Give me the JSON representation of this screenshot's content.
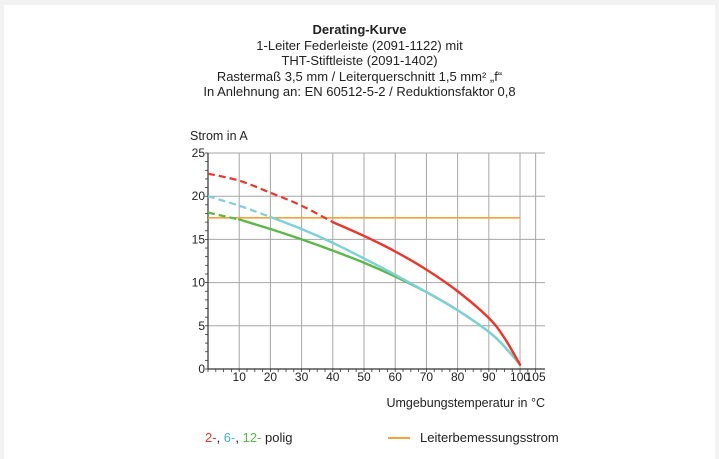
{
  "title_lines": [
    "Derating-Kurve",
    "1-Leiter Federleiste (2091-1122) mit",
    "THT-Stiftleiste (2091-1402)",
    "Rastermaß 3,5 mm / Leiterquerschnitt 1,5 mm² „f“",
    "In Anlehnung an: EN 60512-5-2 / Reduktionsfaktor 0,8"
  ],
  "chart_data": {
    "type": "line",
    "title": "Derating-Kurve",
    "xlabel": "Umgebungstemperatur in °C",
    "ylabel": "Strom in A",
    "xlim": [
      0,
      108
    ],
    "ylim": [
      0,
      25
    ],
    "x_ticks": [
      "10",
      "20",
      "30",
      "40",
      "50",
      "60",
      "70",
      "80",
      "90",
      "100",
      "105"
    ],
    "y_ticks": [
      "0",
      "5",
      "10",
      "15",
      "20",
      "25"
    ],
    "grid": true,
    "series": [
      {
        "color": "#e8372c",
        "dashed_until_x": 40,
        "points": [
          [
            0,
            22.6
          ],
          [
            10,
            21.8
          ],
          [
            20,
            20.4
          ],
          [
            30,
            18.9
          ],
          [
            40,
            17.0
          ],
          [
            50,
            15.4
          ],
          [
            60,
            13.6
          ],
          [
            70,
            11.5
          ],
          [
            80,
            9.0
          ],
          [
            90,
            5.9
          ],
          [
            95,
            3.6
          ],
          [
            100,
            0.5
          ]
        ]
      },
      {
        "color": "#7fd1d8",
        "dashed_until_x": 20,
        "points": [
          [
            0,
            20.0
          ],
          [
            10,
            18.9
          ],
          [
            20,
            17.6
          ],
          [
            30,
            16.2
          ],
          [
            40,
            14.6
          ],
          [
            50,
            12.8
          ],
          [
            60,
            10.9
          ],
          [
            70,
            8.9
          ],
          [
            80,
            6.8
          ],
          [
            90,
            4.3
          ],
          [
            95,
            2.6
          ],
          [
            100,
            0.5
          ]
        ]
      },
      {
        "color": "#5cb84a",
        "dashed_until_x": 10,
        "points": [
          [
            0,
            18.1
          ],
          [
            10,
            17.3
          ],
          [
            20,
            16.2
          ],
          [
            30,
            15.0
          ],
          [
            40,
            13.7
          ],
          [
            50,
            12.3
          ],
          [
            60,
            10.7
          ],
          [
            70,
            8.9
          ],
          [
            80,
            6.8
          ],
          [
            90,
            4.3
          ],
          [
            95,
            2.6
          ],
          [
            100,
            0.5
          ]
        ]
      },
      {
        "name": "Leiterbemessungsstrom",
        "color": "#f4a23c",
        "points": [
          [
            0,
            17.5
          ],
          [
            100,
            17.5
          ]
        ]
      }
    ]
  },
  "legend": {
    "left_parts": [
      {
        "text": "2-",
        "color": "#e8372c"
      },
      {
        "text": ", ",
        "color": "#222222"
      },
      {
        "text": "6-",
        "color": "#3fb6c4"
      },
      {
        "text": ", ",
        "color": "#222222"
      },
      {
        "text": "12-",
        "color": "#5cb84a"
      },
      {
        "text": " polig",
        "color": "#222222"
      }
    ],
    "right_label": "Leiterbemessungsstrom",
    "right_color": "#f4a23c"
  }
}
